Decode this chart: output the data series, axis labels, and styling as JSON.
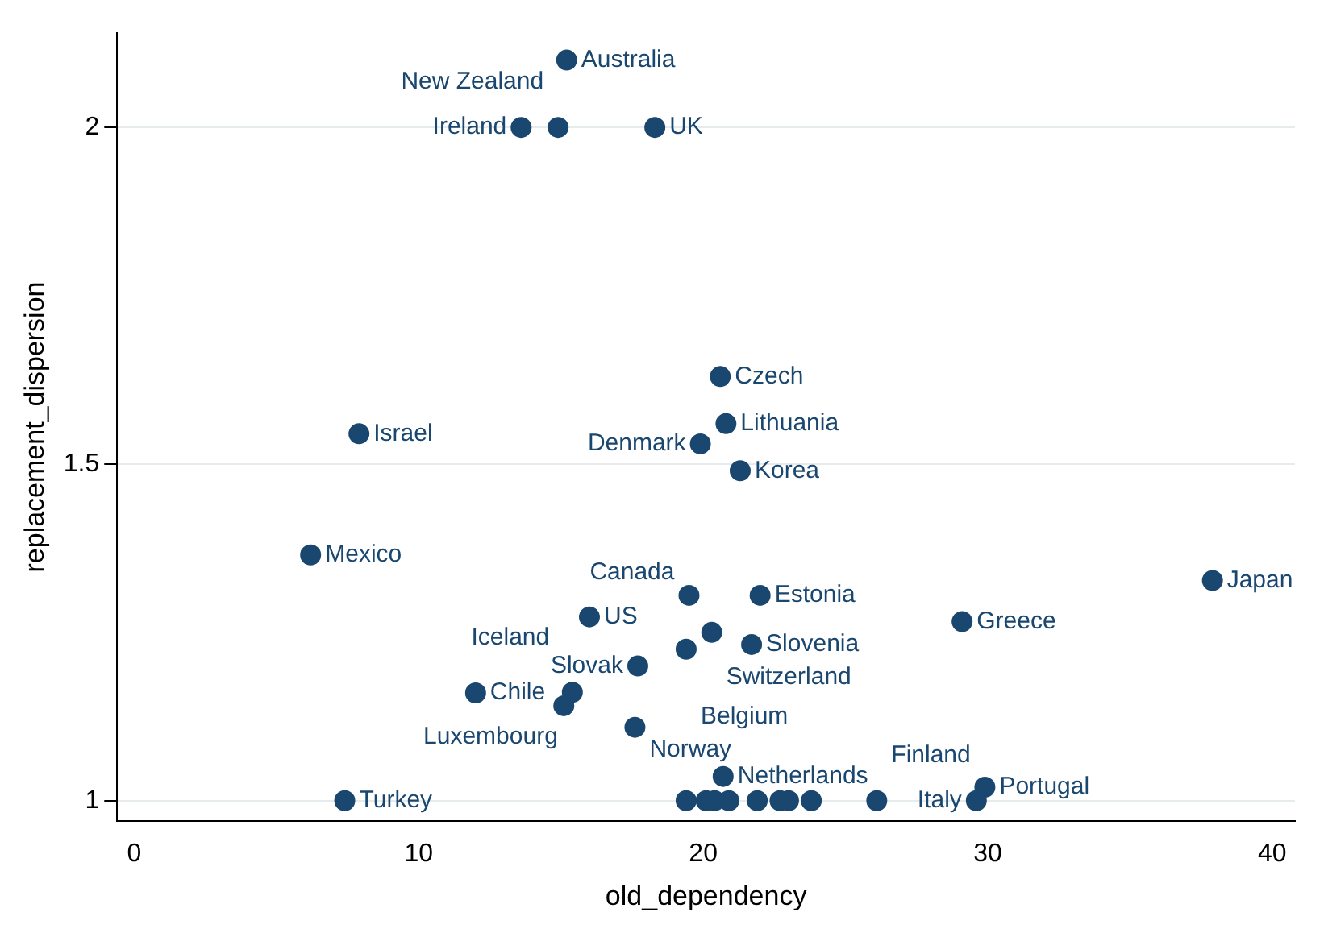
{
  "chart_data": {
    "type": "scatter",
    "xlabel": "old_dependency",
    "ylabel": "replacement_dispersion",
    "color": "#1a476f",
    "x": [
      15.2,
      13.6,
      14.9,
      18.3,
      20.6,
      20.8,
      7.9,
      19.9,
      21.3,
      6.2,
      37.9,
      19.5,
      22.0,
      16.0,
      29.1,
      20.3,
      21.7,
      19.4,
      17.7,
      12.0,
      15.4,
      15.1,
      17.6,
      20.7,
      29.9,
      7.4,
      29.6,
      26.1,
      19.4,
      20.1,
      20.4,
      20.9,
      21.9,
      22.7,
      23.0,
      23.8
    ],
    "values": [
      2.1,
      2.0,
      2.0,
      2.0,
      1.63,
      1.56,
      1.545,
      1.53,
      1.49,
      1.365,
      1.327,
      1.305,
      1.305,
      1.273,
      1.266,
      1.25,
      1.232,
      1.225,
      1.2,
      1.16,
      1.161,
      1.141,
      1.109,
      1.036,
      1.02,
      1.0,
      1.0,
      1.0,
      1.0,
      1.0,
      1.0,
      1.0,
      1.0,
      1.0,
      1.0,
      1.0
    ],
    "value_labels": [
      "Australia",
      "Ireland",
      "New Zealand",
      "UK",
      "Czech",
      "Lithuania",
      "Israel",
      "Denmark",
      "Korea",
      "Mexico",
      "Japan",
      "Canada",
      "Estonia",
      "US",
      "Greece",
      "Switzerland",
      "Slovenia",
      "Belgium",
      "Slovak",
      "Chile",
      "Luxembourg",
      "Iceland",
      "Norway",
      "Netherlands",
      "Portugal",
      "Turkey",
      "Italy",
      "Finland",
      null,
      null,
      null,
      null,
      null,
      null,
      null,
      null
    ],
    "xlim": [
      -0.6,
      40.8
    ],
    "ylim": [
      0.97,
      2.14
    ],
    "xticks": [
      0,
      10,
      20,
      30,
      40
    ],
    "yticks": [
      1,
      1.5,
      2
    ],
    "grid": "y",
    "marker": "circle",
    "legend": false
  }
}
